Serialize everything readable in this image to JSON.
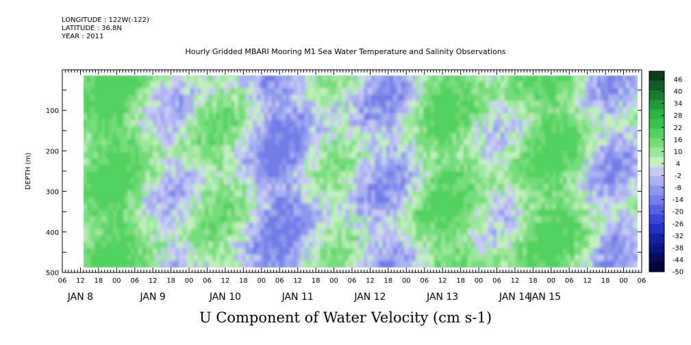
{
  "header": {
    "longitude": "LONGITUDE : 122W(-122)",
    "latitude": "LATITUDE : 36.8N",
    "year": "YEAR : 2011"
  },
  "chart_data": {
    "type": "heatmap",
    "title": "Hourly Gridded MBARI Mooring M1 Sea Water Temperature and Salinity Observations",
    "xlabel": "U Component of Water Velocity (cm s-1)",
    "ylabel": "DEPTH (m)",
    "ylim": [
      500,
      0
    ],
    "y_ticks": [
      100,
      200,
      300,
      400,
      500
    ],
    "x_hour_labels": [
      "06",
      "12",
      "18",
      "00",
      "06",
      "12",
      "18",
      "00",
      "06",
      "12",
      "18",
      "00",
      "06",
      "12",
      "18",
      "00",
      "06",
      "12",
      "18",
      "00",
      "06",
      "12",
      "18",
      "00",
      "06",
      "12",
      "18",
      "00",
      "06",
      "12",
      "18",
      "00",
      "06"
    ],
    "x_day_labels": [
      "JAN  8",
      "JAN  9",
      "JAN 10",
      "JAN 11",
      "JAN 12",
      "JAN 13",
      "JAN 14",
      "JAN 15"
    ],
    "data_extent": {
      "x_start_hours_from_first_tick": 7,
      "depth_top": 14,
      "depth_bottom": 488
    },
    "colorbar": {
      "labels": [
        "46",
        "40",
        "34",
        "28",
        "22",
        "16",
        "10",
        "4",
        "-2",
        "-8",
        "-14",
        "-20",
        "-26",
        "-32",
        "-38",
        "-44",
        "-50"
      ],
      "colors": [
        "#0d3d1a",
        "#145c26",
        "#1b7a30",
        "#22993a",
        "#2cb144",
        "#3ac44f",
        "#52d15f",
        "#74dc7a",
        "#9ee69e",
        "#c3efc0",
        "#c6caf4",
        "#aab1f1",
        "#8e97ec",
        "#737de7",
        "#5762df",
        "#3b47d5",
        "#2230c6",
        "#1721a4",
        "#0e1680",
        "#070d5c",
        "#020638"
      ]
    },
    "field_description_colors": {
      "dominant": [
        "#9ee69e",
        "#aab1f1",
        "#c3efc0",
        "#c6caf4"
      ]
    }
  }
}
